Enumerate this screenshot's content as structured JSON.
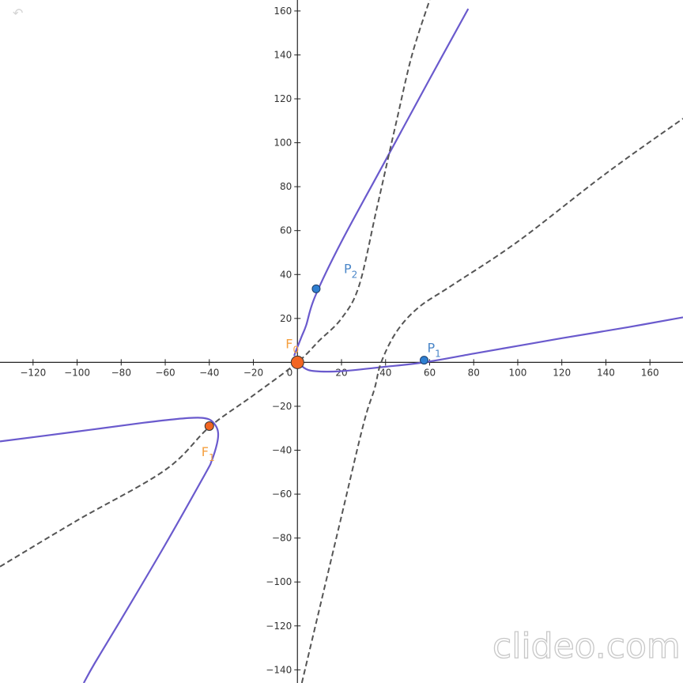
{
  "undo_icon": "undo-arrow-icon",
  "watermark": "clideo.com",
  "chart_data": {
    "type": "line",
    "xlim": [
      -135,
      175
    ],
    "ylim": [
      -146,
      165
    ],
    "x_ticks": [
      -120,
      -100,
      -80,
      -60,
      -40,
      -20,
      20,
      40,
      60,
      80,
      100,
      120,
      140,
      160
    ],
    "y_ticks": [
      -140,
      -120,
      -100,
      -80,
      -60,
      -40,
      -20,
      20,
      40,
      60,
      80,
      100,
      120,
      140,
      160
    ],
    "origin_label": "0",
    "grid": false,
    "colors": {
      "curve": "#6a5acd",
      "dashed": "#555555",
      "focus": "#f26522",
      "point": "#2f7fd1",
      "point_label": "#4a86c8",
      "focus_label": "#f5a040"
    },
    "series": [
      {
        "style": "solid",
        "color": "#6a5acd",
        "points": [
          [
            -135,
            -36
          ],
          [
            -100,
            -31.5
          ],
          [
            -70,
            -27.5
          ],
          [
            -55,
            -25.8
          ],
          [
            -45,
            -25.2
          ],
          [
            -40,
            -26
          ],
          [
            -37.3,
            -28.5
          ],
          [
            -36,
            -32
          ],
          [
            -36.5,
            -37
          ],
          [
            -39,
            -45
          ],
          [
            -42,
            -51
          ],
          [
            -60,
            -83
          ],
          [
            -80,
            -117
          ],
          [
            -92,
            -137
          ],
          [
            -97,
            -146
          ]
        ]
      },
      {
        "style": "solid",
        "color": "#6a5acd",
        "points": [
          [
            -1.5,
            3
          ],
          [
            0,
            7
          ],
          [
            2,
            12
          ],
          [
            4,
            17
          ],
          [
            8,
            30
          ],
          [
            20,
            55
          ],
          [
            40,
            92
          ],
          [
            60,
            129
          ],
          [
            77.5,
            161
          ]
        ]
      },
      {
        "style": "solid",
        "color": "#6a5acd",
        "points": [
          [
            0,
            1
          ],
          [
            3,
            -2.5
          ],
          [
            8,
            -4
          ],
          [
            20,
            -4
          ],
          [
            40,
            -2
          ],
          [
            57.5,
            0
          ],
          [
            80,
            4
          ],
          [
            100,
            7.5
          ],
          [
            120,
            11
          ],
          [
            150,
            16
          ],
          [
            175,
            20.5
          ]
        ]
      },
      {
        "style": "dashed",
        "color": "#555555",
        "points": [
          [
            -135,
            -93
          ],
          [
            -100,
            -72
          ],
          [
            -60,
            -49
          ],
          [
            -40,
            -29.5
          ],
          [
            -20,
            -15
          ],
          [
            0,
            0
          ],
          [
            10,
            10
          ],
          [
            20,
            20
          ],
          [
            28,
            35
          ],
          [
            36,
            70
          ],
          [
            45,
            110
          ],
          [
            52,
            140
          ],
          [
            60,
            165
          ]
        ]
      },
      {
        "style": "dashed",
        "color": "#555555",
        "points": [
          [
            2,
            -146
          ],
          [
            20,
            -70
          ],
          [
            30,
            -28
          ],
          [
            35,
            -12
          ],
          [
            38,
            0
          ],
          [
            45,
            14
          ],
          [
            55,
            25
          ],
          [
            70,
            35
          ],
          [
            100,
            55
          ],
          [
            140,
            86
          ],
          [
            175,
            111
          ]
        ]
      }
    ],
    "foci": [
      {
        "label": "F",
        "sub": "0",
        "x": 0,
        "y": 0
      },
      {
        "label": "F",
        "sub": "1",
        "x": -40,
        "y": -29
      }
    ],
    "points": [
      {
        "label": "P",
        "sub": "2",
        "x": 8.5,
        "y": 33.5
      },
      {
        "label": "P",
        "sub": "1",
        "x": 57.5,
        "y": 1
      }
    ]
  }
}
